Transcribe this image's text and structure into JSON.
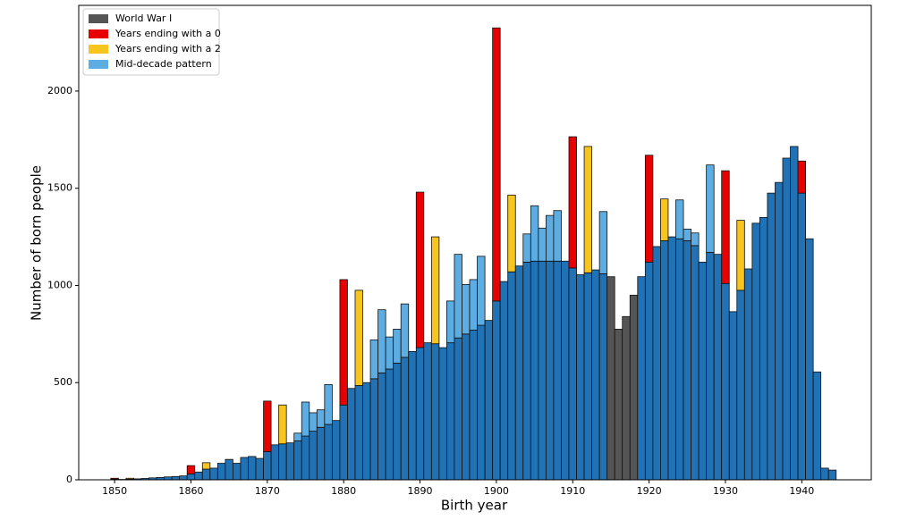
{
  "chart_data": {
    "type": "bar",
    "xlabel": "Birth year",
    "ylabel": "Number of born people",
    "x": [
      1850,
      1851,
      1852,
      1853,
      1854,
      1855,
      1856,
      1857,
      1858,
      1859,
      1860,
      1861,
      1862,
      1863,
      1864,
      1865,
      1866,
      1867,
      1868,
      1869,
      1870,
      1871,
      1872,
      1873,
      1874,
      1875,
      1876,
      1877,
      1878,
      1879,
      1880,
      1881,
      1882,
      1883,
      1884,
      1885,
      1886,
      1887,
      1888,
      1889,
      1890,
      1891,
      1892,
      1893,
      1894,
      1895,
      1896,
      1897,
      1898,
      1899,
      1900,
      1901,
      1902,
      1903,
      1904,
      1905,
      1906,
      1907,
      1908,
      1909,
      1910,
      1911,
      1912,
      1913,
      1914,
      1915,
      1916,
      1917,
      1918,
      1919,
      1920,
      1921,
      1922,
      1923,
      1924,
      1925,
      1926,
      1927,
      1928,
      1929,
      1930,
      1931,
      1932,
      1933,
      1934,
      1935,
      1936,
      1937,
      1938,
      1939,
      1940,
      1941,
      1942,
      1943,
      1944
    ],
    "series": [
      {
        "color": "#2171b5",
        "values": [
          3,
          2,
          3,
          5,
          7,
          10,
          12,
          15,
          17,
          20,
          30,
          40,
          55,
          60,
          85,
          105,
          85,
          115,
          120,
          110,
          145,
          180,
          185,
          190,
          200,
          225,
          250,
          270,
          285,
          305,
          385,
          470,
          485,
          500,
          520,
          550,
          570,
          600,
          630,
          660,
          680,
          705,
          700,
          680,
          705,
          730,
          750,
          770,
          795,
          820,
          920,
          1020,
          1070,
          1100,
          1120,
          1125,
          1125,
          1125,
          1125,
          1125,
          1090,
          1055,
          1065,
          1080,
          1060,
          null,
          null,
          null,
          null,
          1045,
          1120,
          1200,
          1230,
          1250,
          1240,
          1230,
          1205,
          1120,
          1170,
          1160,
          1010,
          865,
          975,
          1085,
          1320,
          1350,
          1475,
          1530,
          1655,
          1715,
          1475,
          1240,
          555,
          60,
          50
        ]
      },
      {
        "name": "World War I",
        "color": "#555555",
        "values": [
          null,
          null,
          null,
          null,
          null,
          null,
          null,
          null,
          null,
          null,
          null,
          null,
          null,
          null,
          null,
          null,
          null,
          null,
          null,
          null,
          null,
          null,
          null,
          null,
          null,
          null,
          null,
          null,
          null,
          null,
          null,
          null,
          null,
          null,
          null,
          null,
          null,
          null,
          null,
          null,
          null,
          null,
          null,
          null,
          null,
          null,
          null,
          null,
          null,
          null,
          null,
          null,
          null,
          null,
          null,
          null,
          null,
          null,
          null,
          null,
          null,
          null,
          null,
          null,
          null,
          1045,
          775,
          840,
          950,
          null,
          null,
          null,
          null,
          null,
          null,
          null,
          null,
          null,
          null,
          null,
          null,
          null,
          null,
          null,
          null,
          null,
          null,
          null,
          null,
          null,
          null,
          null,
          null,
          null,
          null
        ]
      },
      {
        "name": "Years ending with a 0",
        "color": "#e80000",
        "values": [
          5,
          null,
          null,
          null,
          null,
          null,
          null,
          null,
          null,
          null,
          43,
          null,
          null,
          null,
          null,
          null,
          null,
          null,
          null,
          null,
          260,
          null,
          null,
          null,
          null,
          null,
          null,
          null,
          null,
          null,
          645,
          null,
          null,
          null,
          null,
          null,
          null,
          null,
          null,
          null,
          800,
          null,
          null,
          null,
          null,
          null,
          null,
          null,
          null,
          null,
          1405,
          null,
          null,
          null,
          null,
          null,
          null,
          null,
          null,
          null,
          675,
          null,
          null,
          null,
          null,
          null,
          null,
          null,
          null,
          null,
          550,
          null,
          null,
          null,
          null,
          null,
          null,
          null,
          null,
          null,
          580,
          null,
          null,
          null,
          null,
          null,
          null,
          null,
          null,
          null,
          165,
          null,
          null,
          null,
          null
        ]
      },
      {
        "name": "Years ending with a 2",
        "color": "#f7c51e",
        "values": [
          null,
          null,
          5,
          null,
          null,
          null,
          null,
          null,
          null,
          null,
          null,
          null,
          33,
          null,
          null,
          null,
          null,
          null,
          null,
          null,
          null,
          null,
          200,
          null,
          null,
          null,
          null,
          null,
          null,
          null,
          null,
          null,
          490,
          null,
          null,
          null,
          null,
          null,
          null,
          null,
          null,
          null,
          550,
          null,
          null,
          null,
          null,
          null,
          null,
          null,
          null,
          null,
          395,
          null,
          null,
          null,
          null,
          null,
          null,
          null,
          null,
          null,
          650,
          null,
          null,
          null,
          null,
          null,
          null,
          null,
          null,
          null,
          215,
          null,
          null,
          null,
          null,
          null,
          null,
          null,
          null,
          null,
          360,
          null,
          null,
          null,
          null,
          null,
          null,
          null,
          null,
          null,
          null,
          null,
          null
        ]
      },
      {
        "name": "Mid-decade pattern",
        "color": "#5dade2",
        "values": [
          null,
          null,
          null,
          null,
          null,
          null,
          null,
          null,
          null,
          null,
          null,
          null,
          null,
          null,
          null,
          null,
          null,
          null,
          null,
          null,
          null,
          null,
          null,
          null,
          40,
          175,
          95,
          90,
          205,
          null,
          null,
          null,
          null,
          null,
          200,
          325,
          165,
          175,
          275,
          null,
          null,
          null,
          null,
          null,
          215,
          430,
          255,
          260,
          355,
          null,
          null,
          null,
          null,
          null,
          145,
          285,
          170,
          235,
          260,
          null,
          null,
          null,
          null,
          null,
          320,
          null,
          null,
          null,
          null,
          null,
          null,
          null,
          null,
          null,
          200,
          60,
          65,
          null,
          450,
          null,
          null,
          null,
          null,
          null,
          null,
          null,
          null,
          null,
          null,
          null,
          null,
          null,
          null,
          null,
          null
        ]
      }
    ],
    "xlim": [
      1845.3,
      1949.1
    ],
    "xticks": [
      1850,
      1860,
      1870,
      1880,
      1890,
      1900,
      1910,
      1920,
      1930,
      1940
    ],
    "ylim": [
      0,
      2441
    ],
    "yticks": [
      0,
      500,
      1000,
      1500,
      2000
    ],
    "legend": "upper left"
  }
}
